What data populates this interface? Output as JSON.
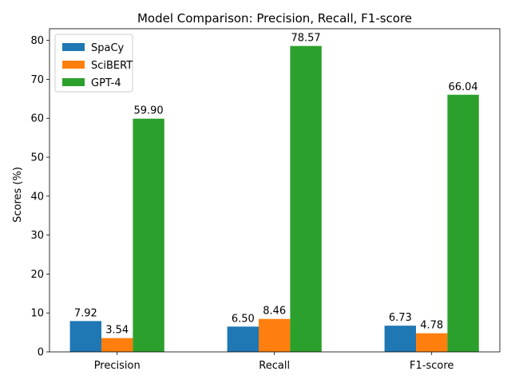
{
  "chart_data": {
    "type": "bar",
    "title": "Model Comparison: Precision, Recall, F1-score",
    "xlabel": "",
    "ylabel": "Scores (%)",
    "ylim": [
      0,
      83
    ],
    "yticks": [
      0,
      10,
      20,
      30,
      40,
      50,
      60,
      70,
      80
    ],
    "categories": [
      "Precision",
      "Recall",
      "F1-score"
    ],
    "series": [
      {
        "name": "SpaCy",
        "color": "#1f77b4",
        "values": [
          7.92,
          6.5,
          6.73
        ]
      },
      {
        "name": "SciBERT",
        "color": "#ff7f0e",
        "values": [
          3.54,
          8.46,
          4.78
        ]
      },
      {
        "name": "GPT-4",
        "color": "#2ca02c",
        "values": [
          59.9,
          78.57,
          66.04
        ]
      }
    ],
    "value_format_decimals": 2,
    "legend_position": "top-left",
    "grid": false
  }
}
